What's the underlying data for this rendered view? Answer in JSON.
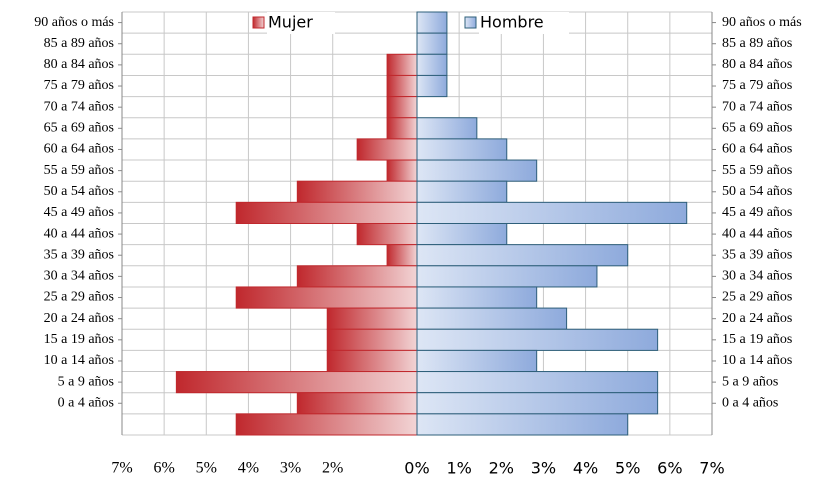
{
  "chart_data": {
    "type": "pyramid",
    "categories": [
      "90 años o más",
      "85 a 89 años",
      "80 a 84 años",
      "75 a 79 años",
      "70 a 74 años",
      "65 a 69 años",
      "60 a 64 años",
      "55 a 59 años",
      "50 a 54 años",
      "45 a 49 años",
      "40 a 44 años",
      "35 a 39 años",
      "30 a 34 años",
      "25 a 29 años",
      "20 a 24 años",
      "15 a 19 años",
      "10 a 14 años",
      "5 a 9 años",
      "0 a 4 años",
      null
    ],
    "series": [
      {
        "name": "Mujer",
        "color": "#c0282d",
        "values": [
          0,
          0,
          -0.71,
          -0.71,
          -0.71,
          -0.71,
          -1.42,
          -0.71,
          -2.84,
          -4.29,
          -1.42,
          -0.71,
          -2.84,
          -4.29,
          -2.13,
          -2.13,
          -2.13,
          -5.71,
          -2.84,
          -4.29
        ]
      },
      {
        "name": "Hombre",
        "color": "#8eaadc",
        "values": [
          0.71,
          0.71,
          0.71,
          0.71,
          0,
          1.42,
          2.13,
          2.84,
          2.13,
          6.4,
          2.13,
          5.0,
          4.27,
          2.84,
          3.55,
          5.71,
          2.84,
          5.71,
          5.71,
          5.0
        ]
      }
    ],
    "xlim": [
      -7,
      7
    ],
    "xticks": [
      {
        "value": -7,
        "label": "7%"
      },
      {
        "value": -6,
        "label": "6%"
      },
      {
        "value": -5,
        "label": "5%"
      },
      {
        "value": -4,
        "label": "4%"
      },
      {
        "value": -3,
        "label": "3%"
      },
      {
        "value": -2,
        "label": "2%"
      },
      {
        "value": 0,
        "label": "0%"
      },
      {
        "value": 1,
        "label": "1%"
      },
      {
        "value": 2,
        "label": "2%"
      },
      {
        "value": 3,
        "label": "3%"
      },
      {
        "value": 4,
        "label": "4%"
      },
      {
        "value": 5,
        "label": "5%"
      },
      {
        "value": 6,
        "label": "6%"
      },
      {
        "value": 7,
        "label": "7%"
      }
    ],
    "grid": true
  }
}
